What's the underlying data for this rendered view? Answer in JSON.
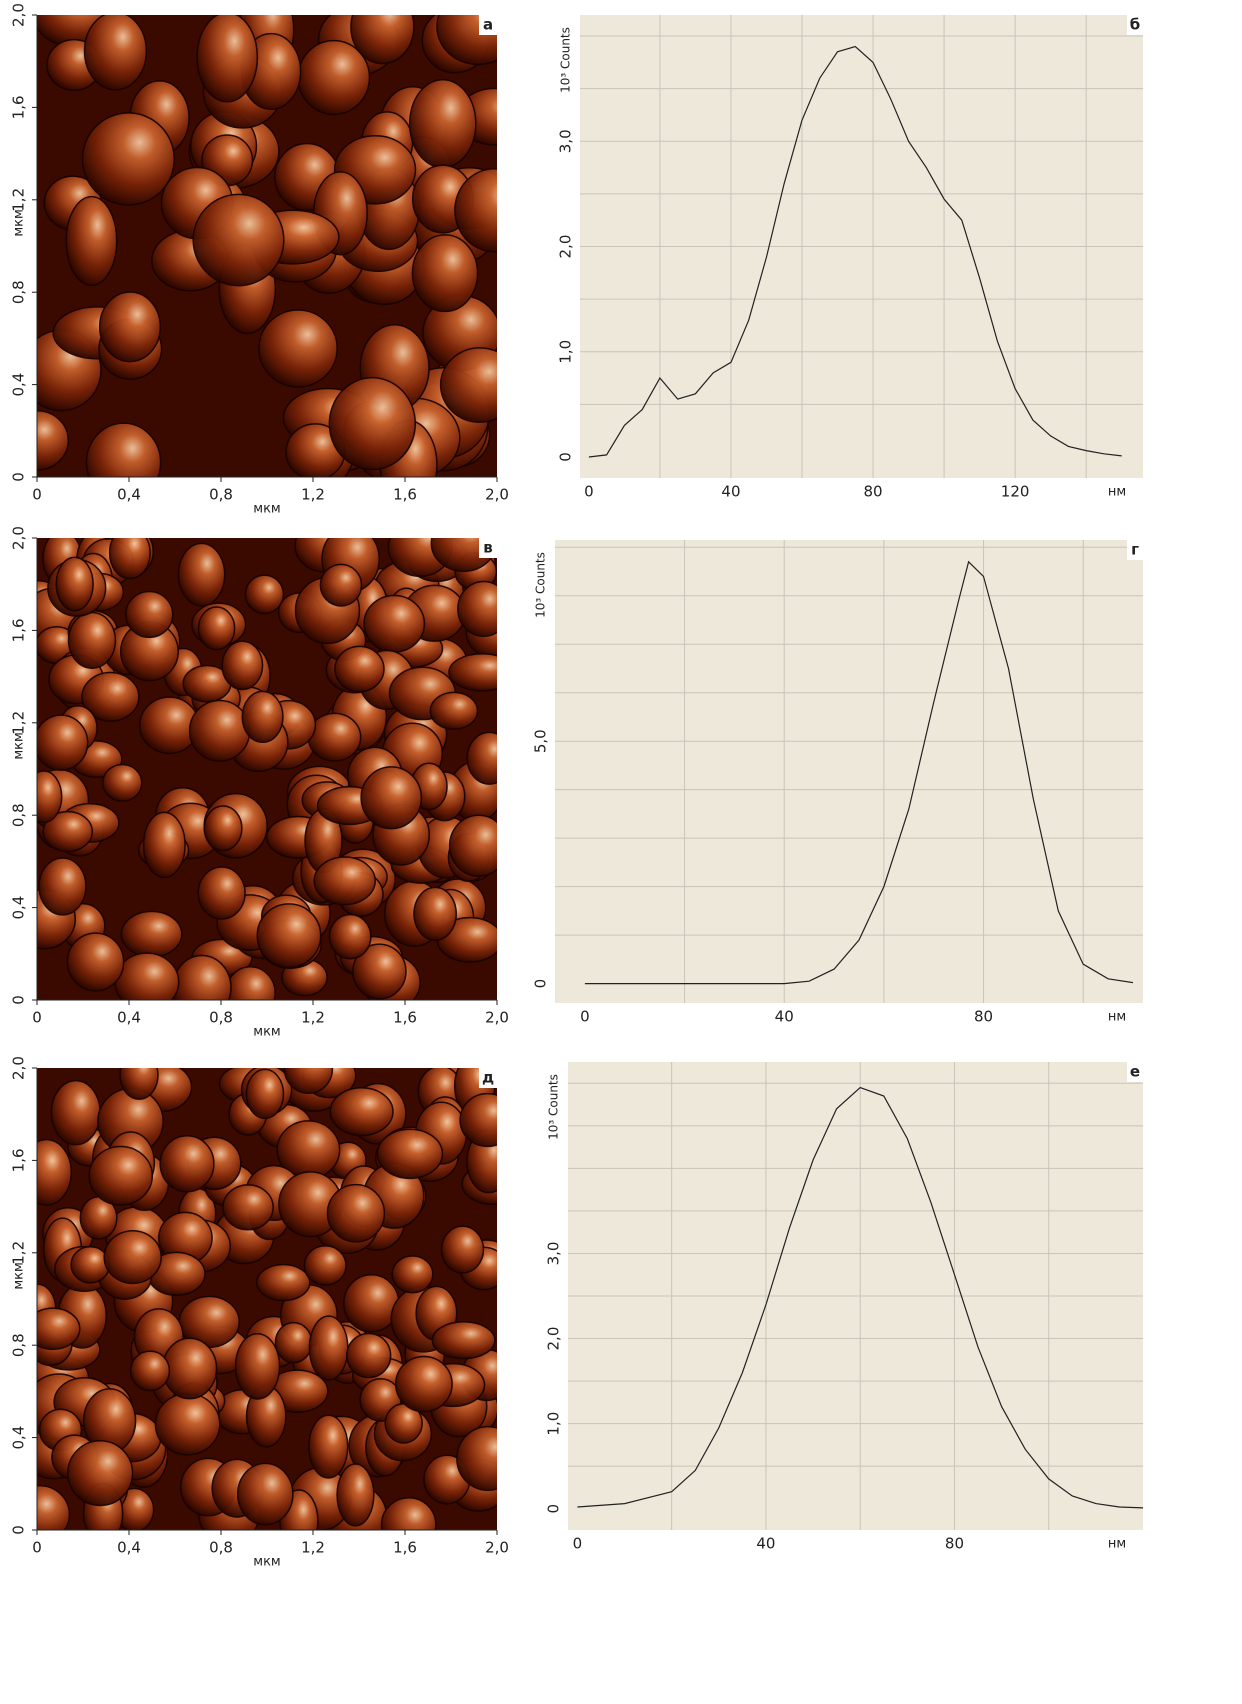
{
  "chart_data": [
    {
      "type": "image",
      "panel_label": "а",
      "xlabel": "мкм",
      "ylabel": "мкм",
      "xlim": [
        0,
        2
      ],
      "ylim": [
        0,
        2
      ],
      "xticks": [
        0,
        {
          "value": 0.4,
          "label": "0,4"
        },
        {
          "value": 0.8,
          "label": "0,8"
        },
        {
          "value": 1.2,
          "label": "1,2"
        },
        {
          "value": 1.6,
          "label": "1,6"
        },
        {
          "value": 2,
          "label": "2,0"
        }
      ],
      "yticks": [
        0,
        {
          "value": 0.4,
          "label": "0,4"
        },
        {
          "value": 0.8,
          "label": "0,8"
        },
        {
          "value": 1.2,
          "label": "1,2"
        },
        {
          "value": 1.6,
          "label": "1,6"
        },
        {
          "value": 2,
          "label": "2,0"
        }
      ]
    },
    {
      "type": "line",
      "panel_label": "б",
      "ylabel": "10³ Counts",
      "xlabel": "нм",
      "color": "#222",
      "background": "#ede8da",
      "x": [
        0,
        5,
        10,
        15,
        20,
        25,
        30,
        35,
        40,
        45,
        50,
        55,
        60,
        65,
        70,
        75,
        80,
        85,
        90,
        95,
        100,
        105,
        110,
        115,
        120,
        125,
        130,
        135,
        140,
        145,
        150
      ],
      "values": [
        0,
        0.02,
        0.3,
        0.45,
        0.75,
        0.55,
        0.6,
        0.8,
        0.9,
        1.3,
        1.9,
        2.6,
        3.2,
        3.6,
        3.85,
        3.9,
        3.75,
        3.4,
        3.0,
        2.75,
        2.45,
        2.25,
        1.7,
        1.1,
        0.65,
        0.35,
        0.2,
        0.1,
        0.06,
        0.03,
        0.01
      ],
      "xlim": [
        -2.5,
        156
      ],
      "ylim": [
        -0.2,
        4.2
      ],
      "xticks": [
        0,
        40,
        80,
        120
      ],
      "yticks": [
        0,
        {
          "value": 1,
          "label": "1,0"
        },
        {
          "value": 2,
          "label": "2,0"
        },
        {
          "value": 3,
          "label": "3,0"
        }
      ],
      "xgrid": [
        20,
        40,
        60,
        80,
        100,
        120,
        140
      ],
      "ygrid": [
        0.5,
        1,
        1.5,
        2,
        2.5,
        3,
        3.5,
        4
      ]
    },
    {
      "type": "image",
      "panel_label": "в",
      "xlabel": "мкм",
      "ylabel": "мкм",
      "xlim": [
        0,
        2
      ],
      "ylim": [
        0,
        2
      ],
      "xticks": [
        0,
        {
          "value": 0.4,
          "label": "0,4"
        },
        {
          "value": 0.8,
          "label": "0,8"
        },
        {
          "value": 1.2,
          "label": "1,2"
        },
        {
          "value": 1.6,
          "label": "1,6"
        },
        {
          "value": 2,
          "label": "2,0"
        }
      ],
      "yticks": [
        0,
        {
          "value": 0.4,
          "label": "0,4"
        },
        {
          "value": 0.8,
          "label": "0,8"
        },
        {
          "value": 1.2,
          "label": "1,2"
        },
        {
          "value": 1.6,
          "label": "1,6"
        },
        {
          "value": 2,
          "label": "2,0"
        }
      ]
    },
    {
      "type": "line",
      "panel_label": "г",
      "ylabel": "10³ Counts",
      "xlabel": "нм",
      "color": "#222",
      "background": "#ede8da",
      "x": [
        0,
        10,
        20,
        30,
        40,
        42,
        45,
        50,
        55,
        60,
        65,
        70,
        75,
        77,
        80,
        85,
        90,
        95,
        100,
        105,
        110
      ],
      "values": [
        0,
        0,
        0,
        0,
        0,
        0.02,
        0.05,
        0.3,
        0.9,
        2.0,
        3.6,
        5.8,
        7.9,
        8.7,
        8.4,
        6.5,
        3.8,
        1.5,
        0.4,
        0.1,
        0.02
      ],
      "xlim": [
        -6,
        112
      ],
      "ylim": [
        -0.4,
        9.15
      ],
      "xticks": [
        0,
        40,
        80
      ],
      "yticks": [
        0,
        {
          "value": 5,
          "label": "5,0"
        }
      ],
      "xgrid": [
        20,
        40,
        60,
        80,
        100
      ],
      "ygrid": [
        1,
        2,
        3,
        4,
        5,
        6,
        7,
        8,
        9
      ]
    },
    {
      "type": "image",
      "panel_label": "д",
      "xlabel": "мкм",
      "ylabel": "мкм",
      "xlim": [
        0,
        2
      ],
      "ylim": [
        0,
        2
      ],
      "xticks": [
        0,
        {
          "value": 0.4,
          "label": "0,4"
        },
        {
          "value": 0.8,
          "label": "0,8"
        },
        {
          "value": 1.2,
          "label": "1,2"
        },
        {
          "value": 1.6,
          "label": "1,6"
        },
        {
          "value": 2,
          "label": "2,0"
        }
      ],
      "yticks": [
        0,
        {
          "value": 0.4,
          "label": "0,4"
        },
        {
          "value": 0.8,
          "label": "0,8"
        },
        {
          "value": 1.2,
          "label": "1,2"
        },
        {
          "value": 1.6,
          "label": "1,6"
        },
        {
          "value": 2,
          "label": "2,0"
        }
      ]
    },
    {
      "type": "line",
      "panel_label": "е",
      "ylabel": "10³ Counts",
      "xlabel": "нм",
      "color": "#222",
      "background": "#ede8da",
      "x": [
        0,
        10,
        20,
        25,
        30,
        35,
        40,
        45,
        50,
        55,
        60,
        65,
        70,
        75,
        80,
        85,
        90,
        95,
        100,
        105,
        110,
        115,
        120
      ],
      "values": [
        0.02,
        0.06,
        0.2,
        0.45,
        0.95,
        1.6,
        2.4,
        3.3,
        4.1,
        4.7,
        4.95,
        4.85,
        4.35,
        3.6,
        2.75,
        1.9,
        1.2,
        0.7,
        0.35,
        0.15,
        0.06,
        0.02,
        0.01
      ],
      "xlim": [
        -2,
        120
      ],
      "ylim": [
        -0.25,
        5.25
      ],
      "xticks": [
        0,
        40,
        80
      ],
      "yticks": [
        0,
        {
          "value": 1,
          "label": "1,0"
        },
        {
          "value": 2,
          "label": "2,0"
        },
        {
          "value": 3,
          "label": "3,0"
        }
      ],
      "xgrid": [
        20,
        40,
        60,
        80,
        100
      ],
      "ygrid": [
        0.5,
        1,
        1.5,
        2,
        2.5,
        3,
        3.5,
        4,
        4.5,
        5
      ]
    }
  ]
}
